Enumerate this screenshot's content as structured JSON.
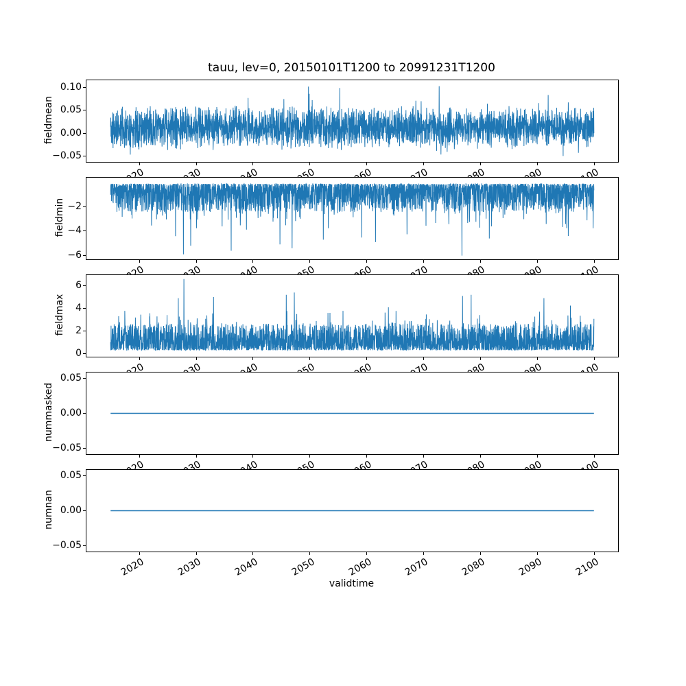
{
  "chart_data": {
    "type": "line",
    "figure_title": "tauu, lev=0, 20150101T1200 to 20991231T1200",
    "xlabel": "validtime",
    "x_start": 2015.0,
    "x_end": 2100.0,
    "xlim": [
      2010.75,
      2104.25
    ],
    "xticks": [
      2020,
      2030,
      2040,
      2050,
      2060,
      2070,
      2080,
      2090,
      2100
    ],
    "line_color": "#1f77b4",
    "grid": false,
    "legend": "none",
    "points_per_series": 3000,
    "subplots": [
      {
        "ylabel": "fieldmean",
        "ylim": [
          -0.063,
          0.116
        ],
        "yticks": [
          0.1,
          0.05,
          0.0,
          -0.05
        ],
        "tick_decimals": 2,
        "description": "Dense noisy daily series oscillating mostly between -0.04 and 0.07, occasional peaks near 0.10 and dips near -0.05",
        "notable_points": [
          [
            2049.8,
            0.102
          ],
          [
            2072.8,
            0.103
          ],
          [
            2055.3,
            0.099
          ]
        ],
        "synthesis": {
          "kind": "sym",
          "seed": 11,
          "base": 0.012,
          "amp": 0.05,
          "spike_prob": 0.06,
          "spike_amp": 0.035,
          "clip": [
            -0.05,
            0.102
          ]
        }
      },
      {
        "ylabel": "fieldmin",
        "ylim": [
          -6.3,
          0.35
        ],
        "yticks": [
          -2,
          -4,
          -6
        ],
        "tick_decimals": 0,
        "description": "Noisy negative series, dense band between about -0.2 and -2.5 with frequent dips to -3.5 and rare deep spikes toward -6",
        "notable_points": [
          [
            2027.8,
            -5.9
          ],
          [
            2029.1,
            -5.2
          ],
          [
            2036.2,
            -5.6
          ],
          [
            2046.9,
            -5.4
          ],
          [
            2052.4,
            -4.7
          ],
          [
            2061.6,
            -4.9
          ],
          [
            2076.8,
            -6.0
          ],
          [
            2081.6,
            -4.6
          ],
          [
            2095.5,
            -4.4
          ]
        ],
        "synthesis": {
          "kind": "one_sided",
          "sign": -1,
          "seed": 22,
          "offset": 0.15,
          "amp": 2.3,
          "spike_prob": 0.1,
          "spike_amp": 1.5,
          "deep_prob": 0.012,
          "deep_amp": 2.5,
          "clip": [
            -5.95,
            -0.03
          ]
        }
      },
      {
        "ylabel": "fieldmax",
        "ylim": [
          -0.3,
          6.95
        ],
        "yticks": [
          6,
          4,
          2,
          0
        ],
        "tick_decimals": 0,
        "description": "Noisy positive series, dense band between about 0.3 and 3.0 with frequent peaks to 4 and rare spikes to 5-6.6",
        "notable_points": [
          [
            2027.9,
            6.6
          ],
          [
            2026.9,
            4.9
          ],
          [
            2033.1,
            5.0
          ],
          [
            2045.9,
            5.2
          ],
          [
            2047.3,
            5.4
          ],
          [
            2076.9,
            5.1
          ],
          [
            2078.4,
            5.2
          ],
          [
            2091.2,
            4.9
          ]
        ],
        "synthesis": {
          "kind": "one_sided",
          "sign": 1,
          "seed": 33,
          "offset": 0.28,
          "amp": 2.35,
          "spike_prob": 0.1,
          "spike_amp": 1.3,
          "deep_prob": 0.01,
          "deep_amp": 2.2,
          "clip": [
            0.04,
            6.55
          ]
        }
      },
      {
        "ylabel": "nummasked",
        "ylim": [
          -0.0585,
          0.0585
        ],
        "yticks": [
          0.05,
          0.0,
          -0.05
        ],
        "tick_decimals": 2,
        "description": "Constant zero line across the full time range",
        "notable_points": [],
        "synthesis": {
          "kind": "constant",
          "value": 0.0
        }
      },
      {
        "ylabel": "numnan",
        "ylim": [
          -0.0585,
          0.0585
        ],
        "yticks": [
          0.05,
          0.0,
          -0.05
        ],
        "tick_decimals": 2,
        "description": "Constant zero line across the full time range",
        "notable_points": [],
        "synthesis": {
          "kind": "constant",
          "value": 0.0
        }
      }
    ]
  }
}
